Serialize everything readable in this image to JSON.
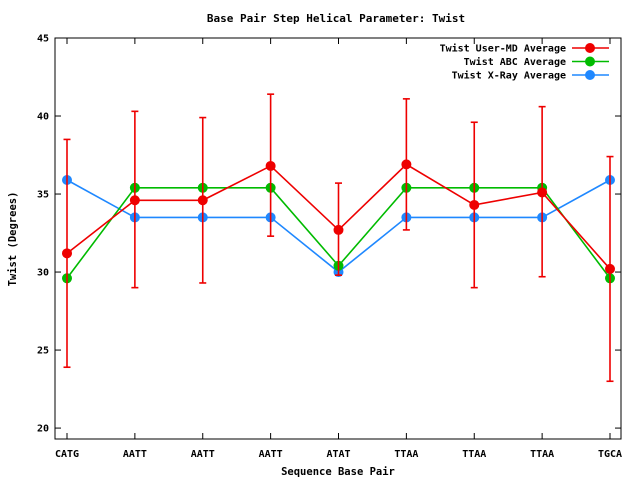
{
  "chart_data": {
    "type": "line",
    "title": "Base Pair Step Helical Parameter: Twist",
    "xlabel": "Sequence Base Pair",
    "ylabel": "Twist (Degrees)",
    "ylim": [
      19.3,
      45
    ],
    "yticks": [
      "20",
      "25",
      "30",
      "35",
      "40",
      "45"
    ],
    "categories": [
      "CATG",
      "AATT",
      "AATT",
      "AATT",
      "ATAT",
      "TTAA",
      "TTAA",
      "TTAA",
      "TGCA"
    ],
    "grid": false,
    "legend": "top-right",
    "series": [
      {
        "name": "Twist User-MD Average",
        "color": "#ee0000",
        "values": [
          31.2,
          34.6,
          34.6,
          36.8,
          32.7,
          36.9,
          34.3,
          35.1,
          30.2
        ],
        "err_low": [
          23.9,
          29.0,
          29.3,
          32.3,
          29.8,
          32.7,
          29.0,
          29.7,
          23.0
        ],
        "err_high": [
          38.5,
          40.3,
          39.9,
          41.4,
          35.7,
          41.1,
          39.6,
          40.6,
          37.4
        ]
      },
      {
        "name": "Twist ABC Average",
        "color": "#00bb00",
        "values": [
          29.6,
          35.4,
          35.4,
          35.4,
          30.4,
          35.4,
          35.4,
          35.4,
          29.6
        ]
      },
      {
        "name": "Twist X-Ray Average",
        "color": "#1f88ff",
        "values": [
          35.9,
          33.5,
          33.5,
          33.5,
          30.0,
          33.5,
          33.5,
          33.5,
          35.9
        ]
      }
    ]
  }
}
